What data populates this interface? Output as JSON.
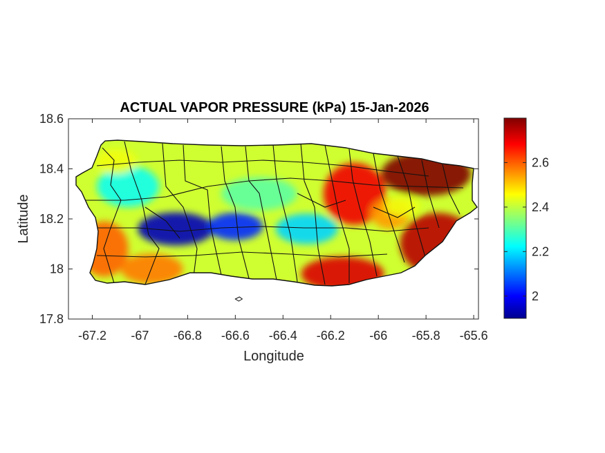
{
  "chart_data": {
    "type": "heatmap",
    "title": "ACTUAL VAPOR PRESSURE (kPa) 15-Jan-2026",
    "xlabel": "Longitude",
    "ylabel": "Latitude",
    "xlim": [
      -67.3,
      -65.58
    ],
    "ylim": [
      17.8,
      18.6
    ],
    "xticks": [
      -67.2,
      -67,
      -66.8,
      -66.6,
      -66.4,
      -66.2,
      -66,
      -65.8,
      -65.6
    ],
    "yticks": [
      17.8,
      18,
      18.2,
      18.4,
      18.6
    ],
    "xtick_labels": [
      "-67.2",
      "-67",
      "-66.8",
      "-66.6",
      "-66.4",
      "-66.2",
      "-66",
      "-65.8",
      "-65.6"
    ],
    "ytick_labels": [
      "17.8",
      "18",
      "18.2",
      "18.4",
      "18.6"
    ],
    "colorbar": {
      "range": [
        1.9,
        2.8
      ],
      "ticks": [
        2.0,
        2.2,
        2.4,
        2.6
      ],
      "tick_labels": [
        "2",
        "2.2",
        "2.4",
        "2.6"
      ],
      "colormap": "jet"
    },
    "grid": false,
    "region": "Puerto Rico municipalities",
    "field_hotspots": [
      {
        "lon": -66.85,
        "lat": 18.16,
        "value": 1.95
      },
      {
        "lon": -66.6,
        "lat": 18.17,
        "value": 2.05
      },
      {
        "lon": -66.3,
        "lat": 18.16,
        "value": 2.2
      },
      {
        "lon": -67.05,
        "lat": 18.33,
        "value": 2.25
      },
      {
        "lon": -66.5,
        "lat": 18.3,
        "value": 2.32
      },
      {
        "lon": -65.8,
        "lat": 18.38,
        "value": 2.8
      },
      {
        "lon": -65.75,
        "lat": 18.1,
        "value": 2.75
      },
      {
        "lon": -66.15,
        "lat": 17.98,
        "value": 2.72
      },
      {
        "lon": -66.1,
        "lat": 18.3,
        "value": 2.7
      },
      {
        "lon": -67.15,
        "lat": 18.08,
        "value": 2.6
      },
      {
        "lon": -66.95,
        "lat": 18.0,
        "value": 2.58
      },
      {
        "lon": -65.95,
        "lat": 18.22,
        "value": 2.55
      },
      {
        "lon": -65.9,
        "lat": 18.25,
        "value": 2.45
      },
      {
        "lon": -67.1,
        "lat": 18.43,
        "value": 2.45
      }
    ]
  }
}
